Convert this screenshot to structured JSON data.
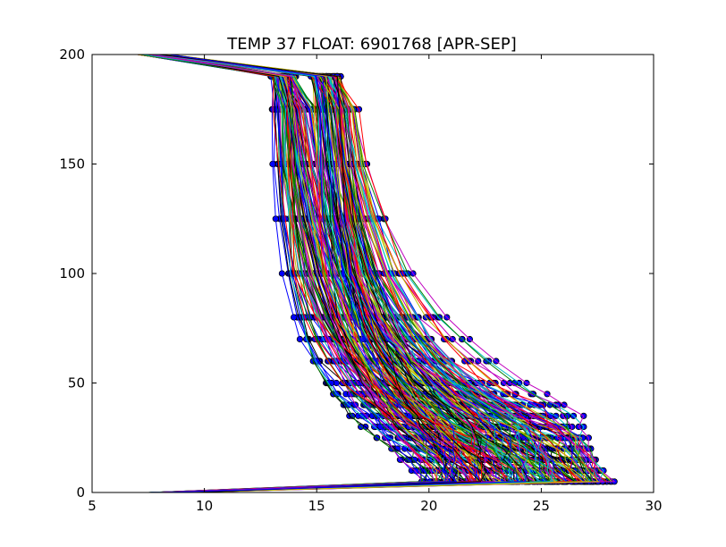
{
  "chart_data": {
    "type": "line",
    "title": "TEMP 37 FLOAT: 6901768 [APR-SEP]",
    "xlabel": "",
    "ylabel": "",
    "xlim": [
      5,
      30
    ],
    "ylim": [
      0,
      200
    ],
    "xticks": [
      5,
      10,
      15,
      20,
      25,
      30
    ],
    "yticks": [
      0,
      50,
      100,
      150,
      200
    ],
    "grid": false,
    "legend": "none",
    "marker_color": "#0000ff",
    "marker_edge_color": "#000000",
    "series_palette": [
      "#0000ff",
      "#008000",
      "#ff0000",
      "#00bfbf",
      "#bf00bf",
      "#bfbf00",
      "#000000"
    ],
    "profile_shape": {
      "depth_levels": [
        0,
        5,
        10,
        15,
        20,
        25,
        30,
        35,
        40,
        45,
        50,
        60,
        70,
        80,
        100,
        125,
        150,
        175,
        190,
        200
      ],
      "description_free": true
    },
    "series_groups": [
      {
        "deep_temp_range": [
          13.0,
          14.0
        ],
        "surface_temp_range": [
          20,
          28.5
        ],
        "mixed_layer_depth_range": [
          5,
          30
        ],
        "surface_outlier_temp": [
          7.5,
          8.5
        ],
        "top_outlier_temp": [
          7,
          8
        ],
        "count": 110
      },
      {
        "deep_temp_range": [
          14.8,
          16.0
        ],
        "surface_temp_range": [
          21,
          28
        ],
        "mixed_layer_depth_range": [
          8,
          40
        ],
        "surface_outlier_temp": [
          8,
          9.5
        ],
        "top_outlier_temp": [
          7.5,
          8.5
        ],
        "count": 110
      }
    ]
  }
}
